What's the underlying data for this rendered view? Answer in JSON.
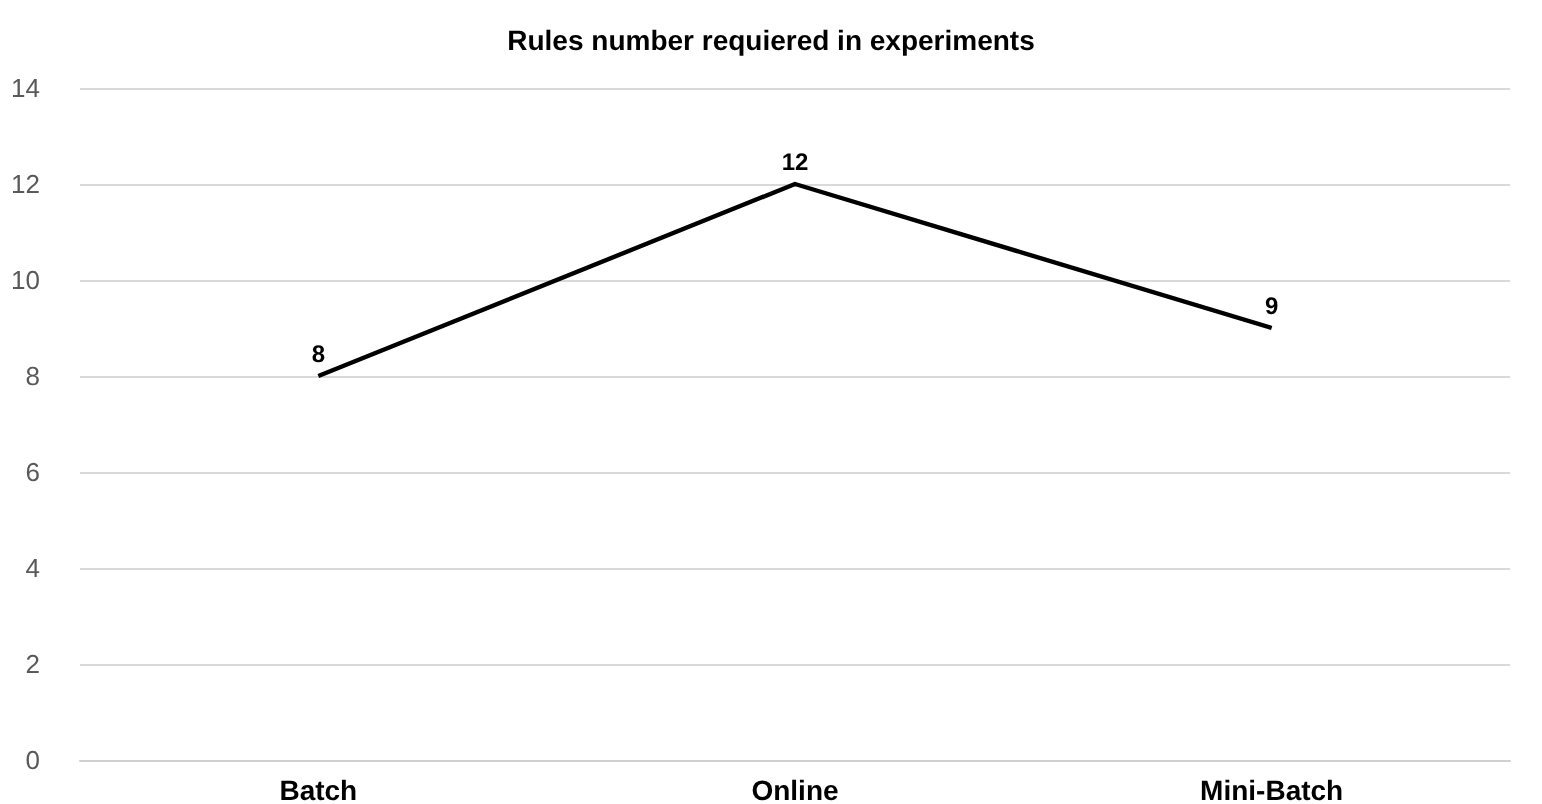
{
  "chart_data": {
    "type": "line",
    "title": "Rules number requiered in experiments",
    "categories": [
      "Batch",
      "Online",
      "Mini-Batch"
    ],
    "series": [
      {
        "color": "#000000",
        "values": [
          8,
          12,
          9
        ]
      }
    ],
    "ylim": [
      0,
      14
    ],
    "yticks": [
      0,
      2,
      4,
      6,
      8,
      10,
      12,
      14
    ],
    "grid": "y",
    "marker": "none",
    "line_style": "solid",
    "data_labels": true
  }
}
